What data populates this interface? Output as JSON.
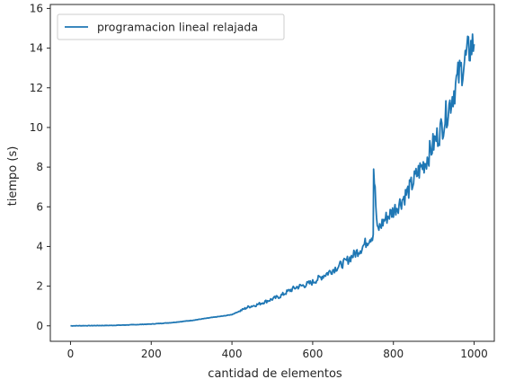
{
  "chart_data": {
    "type": "line",
    "title": "",
    "xlabel": "cantidad de elementos",
    "ylabel": "tiempo (s)",
    "xlim": [
      -50,
      1050
    ],
    "ylim": [
      -0.78,
      16.2
    ],
    "x_ticks": [
      0,
      200,
      400,
      600,
      800,
      1000
    ],
    "y_ticks": [
      0,
      2,
      4,
      6,
      8,
      10,
      12,
      14,
      16
    ],
    "grid": false,
    "legend_position": "top-left",
    "series": [
      {
        "name": "programacion lineal relajada",
        "color": "#1f77b4",
        "x": [
          0,
          50,
          100,
          150,
          200,
          250,
          300,
          350,
          380,
          400,
          420,
          440,
          460,
          480,
          500,
          520,
          540,
          560,
          580,
          600,
          620,
          640,
          660,
          680,
          700,
          720,
          740,
          750,
          751,
          760,
          780,
          800,
          820,
          840,
          860,
          880,
          900,
          920,
          940,
          960,
          980,
          990,
          1000
        ],
        "y": [
          0.0,
          0.01,
          0.02,
          0.05,
          0.09,
          0.16,
          0.27,
          0.42,
          0.5,
          0.57,
          0.75,
          0.95,
          1.05,
          1.2,
          1.35,
          1.5,
          1.75,
          1.95,
          2.05,
          2.2,
          2.45,
          2.7,
          2.95,
          3.2,
          3.55,
          3.9,
          4.4,
          4.6,
          8.0,
          4.8,
          5.4,
          5.8,
          6.3,
          6.9,
          7.7,
          8.3,
          9.2,
          10.0,
          11.2,
          12.5,
          13.5,
          14.0,
          14.2
        ]
      }
    ]
  }
}
